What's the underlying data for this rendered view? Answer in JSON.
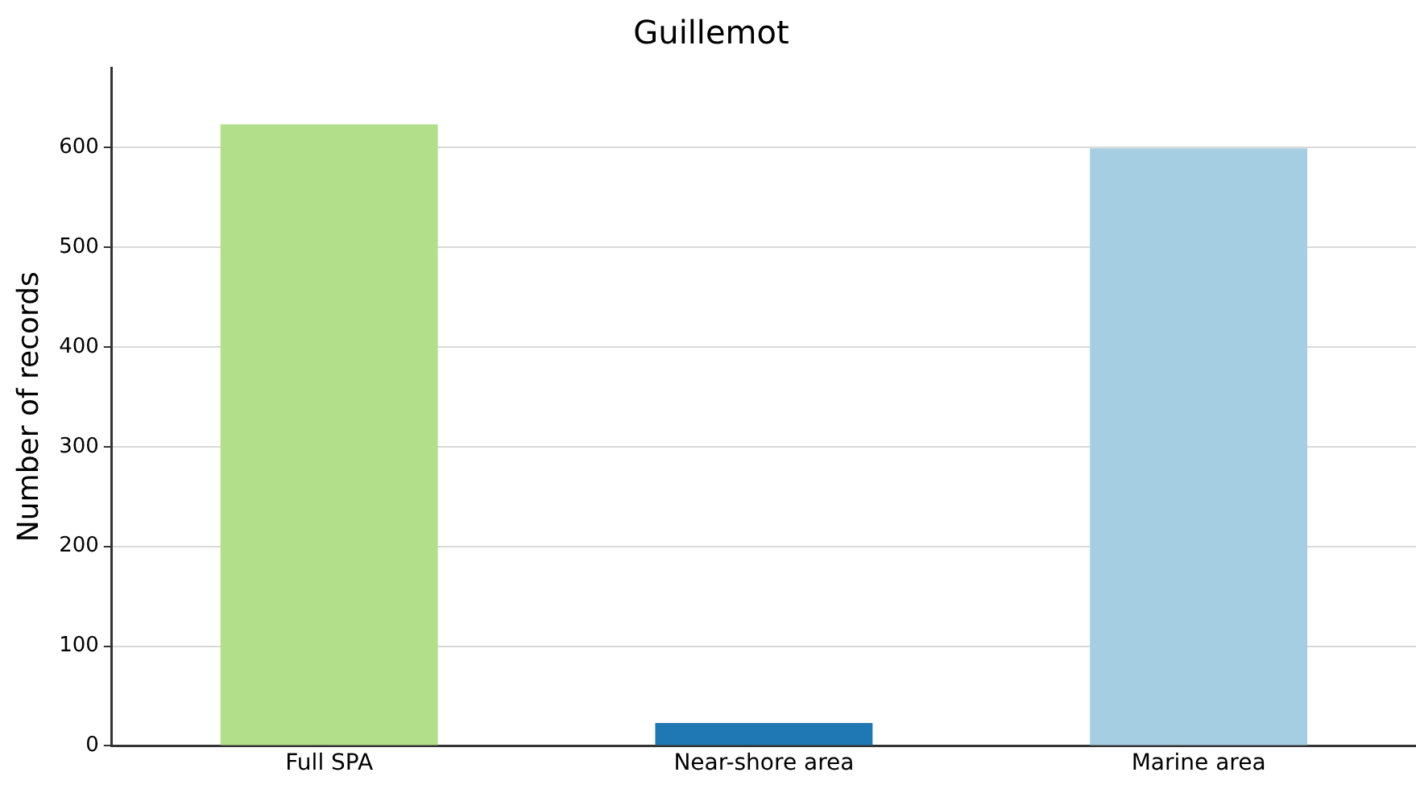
{
  "chart_data": {
    "type": "bar",
    "title": "Guillemot",
    "ylabel": "Number of records",
    "categories": [
      "Full SPA",
      "Near-shore area",
      "Marine area"
    ],
    "values": [
      623,
      23,
      599
    ],
    "colors": [
      "#b2df8a",
      "#1f78b4",
      "#a6cee3"
    ],
    "ylim": [
      0,
      680
    ],
    "yticks": [
      0,
      100,
      200,
      300,
      400,
      500,
      600
    ],
    "grid": "y",
    "legend": false
  }
}
